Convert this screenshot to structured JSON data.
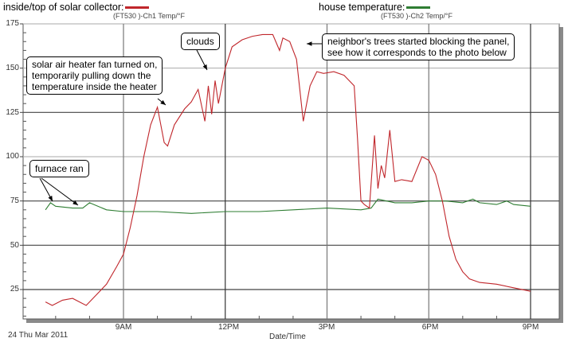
{
  "legend": {
    "series1_label": "inside/top of solar collector:",
    "series1_color": "#c0262b",
    "series1_sub": "(FT530   )-Ch1 Temp/°F",
    "series2_label": "house temperature:",
    "series2_color": "#2e7d32",
    "series2_sub": "(FT530   )-Ch2 Temp/°F"
  },
  "axes": {
    "y_ticks": [
      "175",
      "150",
      "125",
      "100",
      "75",
      "50",
      "25"
    ],
    "x_ticks": [
      "9AM",
      "12PM",
      "3PM",
      "6PM",
      "9PM"
    ],
    "x_title": "Date/Time",
    "date_label": "24 Thu Mar 2011"
  },
  "annotations": {
    "fan": [
      "solar air heater fan turned on,",
      "temporarily pulling down the",
      "temperature inside the heater"
    ],
    "clouds": "clouds",
    "trees": [
      "neighbor's trees started blocking the panel,",
      "see how it corresponds to the photo below"
    ],
    "furnace": "furnace ran"
  },
  "chart_data": {
    "type": "line",
    "title": "",
    "xlabel": "Date/Time",
    "ylabel": "Temp/°F",
    "date": "24 Thu Mar 2011",
    "ylim": [
      8,
      175
    ],
    "xlim_hours": [
      6.1,
      21.8
    ],
    "x_tick_labels": [
      "9AM",
      "12PM",
      "3PM",
      "6PM",
      "9PM"
    ],
    "y_tick_values": [
      25,
      50,
      75,
      100,
      125,
      150,
      175
    ],
    "grid": true,
    "legend_position": "top",
    "series": [
      {
        "name": "inside/top of solar collector",
        "channel": "(FT530 )-Ch1 Temp/°F",
        "color": "#c0262b",
        "x_hours": [
          6.7,
          6.9,
          7.2,
          7.5,
          7.9,
          8.2,
          8.5,
          8.8,
          9.0,
          9.2,
          9.4,
          9.6,
          9.8,
          10.0,
          10.2,
          10.3,
          10.5,
          10.8,
          11.0,
          11.2,
          11.4,
          11.5,
          11.6,
          11.7,
          11.8,
          11.9,
          12.0,
          12.2,
          12.5,
          12.8,
          13.1,
          13.4,
          13.6,
          13.7,
          13.9,
          14.1,
          14.3,
          14.5,
          14.7,
          14.9,
          15.2,
          15.5,
          15.8,
          15.9,
          16.0,
          16.1,
          16.25,
          16.4,
          16.5,
          16.6,
          16.7,
          16.85,
          17.0,
          17.2,
          17.5,
          17.8,
          18.0,
          18.2,
          18.4,
          18.6,
          18.8,
          19.0,
          19.2,
          19.5,
          20.0,
          20.5,
          21.0
        ],
        "values": [
          18,
          16,
          19,
          20,
          16,
          22,
          28,
          38,
          45,
          60,
          78,
          100,
          118,
          128,
          108,
          106,
          118,
          127,
          131,
          138,
          120,
          140,
          124,
          143,
          130,
          140,
          150,
          162,
          166,
          168,
          169,
          169,
          160,
          167,
          165,
          155,
          120,
          140,
          148,
          147,
          148,
          146,
          140,
          110,
          75,
          73,
          71,
          112,
          82,
          95,
          88,
          115,
          86,
          87,
          86,
          100,
          98,
          90,
          75,
          55,
          42,
          35,
          31,
          29,
          28,
          26,
          24
        ]
      },
      {
        "name": "house temperature",
        "channel": "(FT530 )-Ch2 Temp/°F",
        "color": "#2e7d32",
        "x_hours": [
          6.7,
          6.85,
          7.0,
          7.5,
          7.8,
          8.0,
          8.5,
          9.0,
          10.0,
          11.0,
          12.0,
          13.0,
          14.0,
          15.0,
          16.0,
          16.3,
          16.5,
          17.0,
          17.5,
          18.0,
          18.5,
          19.0,
          19.3,
          19.5,
          20.0,
          20.3,
          20.5,
          21.0
        ],
        "values": [
          70,
          74,
          72,
          71,
          71,
          74,
          70,
          69,
          69,
          68,
          69,
          69,
          70,
          71,
          70,
          71,
          76,
          74,
          74,
          75,
          75,
          74,
          76,
          74,
          73,
          75,
          73,
          72
        ]
      }
    ],
    "annotations": [
      {
        "text": "solar air heater fan turned on, temporarily pulling down the temperature inside the heater",
        "target_hour": 10.2,
        "target_value": 128
      },
      {
        "text": "clouds",
        "target_hour": 11.4,
        "target_value": 143
      },
      {
        "text": "neighbor's trees started blocking the panel, see how it corresponds to the photo below",
        "target_hour": 14.0,
        "target_value": 165
      },
      {
        "text": "furnace ran",
        "target_hour": [
          6.85,
          8.0
        ],
        "target_value": [
          74,
          74
        ]
      }
    ]
  }
}
